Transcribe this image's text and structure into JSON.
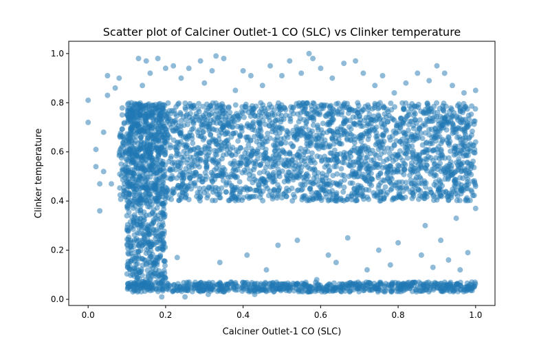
{
  "chart_data": {
    "type": "scatter",
    "title": "Scatter plot of Calciner Outlet-1 CO (SLC) vs Clinker temperature",
    "xlabel": "Calciner Outlet-1 CO (SLC)",
    "ylabel": "Clinker temperature",
    "xlim": [
      -0.05,
      1.05
    ],
    "ylim": [
      -0.025,
      1.05
    ],
    "xticks": [
      "0.0",
      "0.2",
      "0.4",
      "0.6",
      "0.8",
      "1.0"
    ],
    "yticks": [
      "0.0",
      "0.2",
      "0.4",
      "0.6",
      "0.8",
      "1.0"
    ],
    "grid": false,
    "legend": "none",
    "marker_color": "#1f77b4",
    "marker_alpha": 0.5,
    "dense_regions": [
      {
        "x": [
          0.08,
          1.0
        ],
        "y": [
          0.4,
          0.8
        ],
        "density": "very high"
      },
      {
        "x": [
          0.1,
          0.2
        ],
        "y": [
          0.05,
          0.8
        ],
        "density": "high"
      },
      {
        "x": [
          0.1,
          1.0
        ],
        "y": [
          0.03,
          0.07
        ],
        "density": "high"
      }
    ],
    "points": [
      [
        0.0,
        0.81
      ],
      [
        0.0,
        0.72
      ],
      [
        0.02,
        0.61
      ],
      [
        0.02,
        0.54
      ],
      [
        0.03,
        0.47
      ],
      [
        0.03,
        0.36
      ],
      [
        0.04,
        0.52
      ],
      [
        0.04,
        0.68
      ],
      [
        0.05,
        0.83
      ],
      [
        0.05,
        0.91
      ],
      [
        0.06,
        0.47
      ],
      [
        0.07,
        0.86
      ],
      [
        0.08,
        0.9
      ],
      [
        0.1,
        0.34
      ],
      [
        0.12,
        0.3
      ],
      [
        0.13,
        0.98
      ],
      [
        0.14,
        0.87
      ],
      [
        0.14,
        0.22
      ],
      [
        0.15,
        0.97
      ],
      [
        0.16,
        0.92
      ],
      [
        0.17,
        0.14
      ],
      [
        0.18,
        0.98
      ],
      [
        0.19,
        0.01
      ],
      [
        0.2,
        0.94
      ],
      [
        0.22,
        0.95
      ],
      [
        0.23,
        0.17
      ],
      [
        0.24,
        0.9
      ],
      [
        0.25,
        0.01
      ],
      [
        0.26,
        0.94
      ],
      [
        0.27,
        0.06
      ],
      [
        0.29,
        0.97
      ],
      [
        0.3,
        0.88
      ],
      [
        0.31,
        0.02
      ],
      [
        0.32,
        0.93
      ],
      [
        0.33,
        0.99
      ],
      [
        0.34,
        0.15
      ],
      [
        0.35,
        0.98
      ],
      [
        0.36,
        0.06
      ],
      [
        0.38,
        0.85
      ],
      [
        0.4,
        0.93
      ],
      [
        0.41,
        0.18
      ],
      [
        0.42,
        0.91
      ],
      [
        0.43,
        0.02
      ],
      [
        0.45,
        0.87
      ],
      [
        0.46,
        0.12
      ],
      [
        0.47,
        0.95
      ],
      [
        0.49,
        0.22
      ],
      [
        0.5,
        0.91
      ],
      [
        0.51,
        0.06
      ],
      [
        0.52,
        0.97
      ],
      [
        0.54,
        0.24
      ],
      [
        0.55,
        0.92
      ],
      [
        0.57,
        1.0
      ],
      [
        0.58,
        0.98
      ],
      [
        0.59,
        0.08
      ],
      [
        0.6,
        0.94
      ],
      [
        0.62,
        0.18
      ],
      [
        0.63,
        0.9
      ],
      [
        0.64,
        0.15
      ],
      [
        0.66,
        0.96
      ],
      [
        0.67,
        0.25
      ],
      [
        0.69,
        0.97
      ],
      [
        0.7,
        0.06
      ],
      [
        0.71,
        0.92
      ],
      [
        0.72,
        0.12
      ],
      [
        0.74,
        0.87
      ],
      [
        0.75,
        0.2
      ],
      [
        0.76,
        0.91
      ],
      [
        0.78,
        0.14
      ],
      [
        0.79,
        0.84
      ],
      [
        0.8,
        0.23
      ],
      [
        0.82,
        0.88
      ],
      [
        0.83,
        0.06
      ],
      [
        0.85,
        0.92
      ],
      [
        0.86,
        0.18
      ],
      [
        0.87,
        0.3
      ],
      [
        0.88,
        0.89
      ],
      [
        0.89,
        0.13
      ],
      [
        0.9,
        0.95
      ],
      [
        0.91,
        0.24
      ],
      [
        0.92,
        0.92
      ],
      [
        0.93,
        0.16
      ],
      [
        0.94,
        0.87
      ],
      [
        0.95,
        0.33
      ],
      [
        0.96,
        0.12
      ],
      [
        0.97,
        0.84
      ],
      [
        0.98,
        0.45
      ],
      [
        0.98,
        0.19
      ],
      [
        0.99,
        0.07
      ],
      [
        0.99,
        0.55
      ],
      [
        1.0,
        0.37
      ],
      [
        1.0,
        0.64
      ],
      [
        1.0,
        0.85
      ],
      [
        0.97,
        0.04
      ],
      [
        0.15,
        0.06
      ]
    ]
  }
}
